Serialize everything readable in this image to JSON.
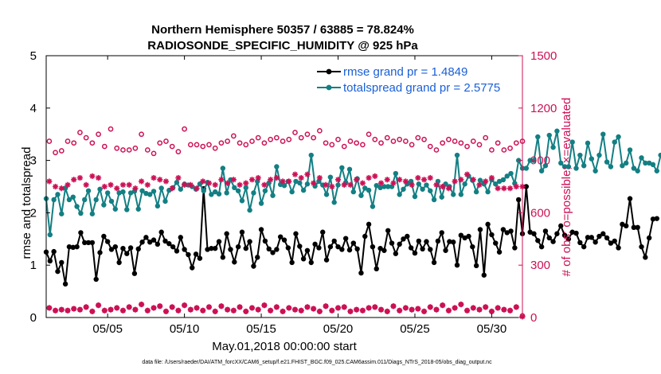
{
  "chart_data": {
    "type": "line",
    "title": "Northern Hemisphere 50357 / 63885 = 78.824%",
    "subtitle": "RADIOSONDE_SPECIFIC_HUMIDITY @ 925 hPa",
    "xlabel": "May.01,2018 00:00:00 start",
    "ylabel": "rmse and totalspread",
    "y2label": "# of obs: o=possible; ×=evaluated",
    "footnote": "data file: /Users/raeder/DAI/ATM_forcXX/CAM6_setup/f.e21.FHIST_BGC.f09_025.CAM6assim.011/Diags_NTrS_2018-05/obs_diag_output.nc",
    "xlim": [
      1,
      32
    ],
    "ylim": [
      0,
      5
    ],
    "y2lim": [
      0,
      1500
    ],
    "xticks": [
      5,
      10,
      15,
      20,
      25,
      30
    ],
    "xtick_labels": [
      "05/05",
      "05/10",
      "05/15",
      "05/20",
      "05/25",
      "05/30"
    ],
    "yticks": [
      "0",
      "1",
      "2",
      "3",
      "4",
      "5"
    ],
    "y2ticks": [
      "0",
      "300",
      "600",
      "900",
      "1200",
      "1500"
    ],
    "legend": [
      "rmse grand pr = 1.4849",
      "totalspread grand pr = 2.5775"
    ],
    "legend_position": "top-right",
    "x_step": 0.25,
    "series": [
      {
        "role": "rmse",
        "color": "#000000",
        "marker": "filled-circle",
        "axis": "left",
        "values": [
          1.25,
          1.08,
          1.26,
          0.88,
          1.05,
          0.64,
          1.35,
          1.34,
          1.35,
          1.62,
          1.43,
          1.43,
          1.43,
          0.73,
          1.24,
          1.55,
          1.45,
          1.3,
          1.35,
          1.05,
          1.32,
          1.22,
          1.33,
          0.84,
          1.31,
          1.44,
          1.53,
          1.44,
          1.48,
          1.4,
          1.63,
          1.46,
          1.41,
          1.35,
          1.27,
          1.53,
          1.3,
          1.2,
          0.95,
          1.21,
          1.13,
          2.46,
          1.3,
          1.32,
          1.32,
          1.45,
          1.15,
          1.6,
          1.3,
          1.06,
          1.35,
          1.63,
          1.32,
          1.45,
          0.98,
          1.15,
          1.68,
          1.46,
          1.31,
          1.24,
          1.3,
          1.54,
          1.48,
          1.33,
          1.05,
          1.6,
          1.36,
          1.12,
          1.28,
          1.05,
          1.4,
          1.33,
          1.63,
          1.1,
          1.35,
          1.46,
          1.35,
          1.3,
          1.51,
          1.29,
          1.42,
          1.31,
          0.85,
          1.55,
          1.78,
          1.35,
          0.93,
          1.32,
          1.28,
          1.66,
          1.42,
          1.22,
          1.4,
          1.5,
          1.55,
          1.33,
          1.23,
          1.46,
          1.31,
          1.45,
          1.3,
          1.05,
          1.46,
          1.62,
          1.28,
          1.45,
          1.44,
          1.0,
          1.57,
          1.52,
          1.55,
          1.35,
          0.99,
          1.68,
          0.81,
          1.78,
          1.58,
          1.42,
          1.25,
          1.68,
          1.62,
          1.65,
          1.33,
          2.25,
          1.6,
          2.5,
          1.63,
          1.6,
          1.47,
          1.35,
          1.65,
          1.52,
          1.45,
          1.6,
          1.75,
          1.57,
          1.5,
          1.63,
          1.61,
          1.43,
          1.35,
          1.53,
          1.53,
          1.44,
          1.55,
          1.6,
          1.52,
          1.42,
          1.46,
          1.33,
          1.78,
          1.75,
          2.27,
          1.72,
          1.72,
          1.35,
          1.15,
          1.52,
          1.88,
          1.89
        ]
      },
      {
        "role": "totalspread",
        "color": "#137f83",
        "marker": "filled-circle",
        "axis": "left",
        "values": [
          2.27,
          1.58,
          2.25,
          2.35,
          1.98,
          2.47,
          2.25,
          2.3,
          2.12,
          1.99,
          2.25,
          2.42,
          1.98,
          2.25,
          2.45,
          2.15,
          2.38,
          2.22,
          2.07,
          2.38,
          2.4,
          2.06,
          2.38,
          2.41,
          2.07,
          2.42,
          2.37,
          2.35,
          2.41,
          2.13,
          2.47,
          2.22,
          2.43,
          2.48,
          2.58,
          2.45,
          2.55,
          2.53,
          2.5,
          2.45,
          2.55,
          2.42,
          2.58,
          2.35,
          2.4,
          2.36,
          2.85,
          2.38,
          2.63,
          2.48,
          2.42,
          2.23,
          2.48,
          2.05,
          2.38,
          2.6,
          2.18,
          2.42,
          2.57,
          2.33,
          2.88,
          2.54,
          2.52,
          2.6,
          2.4,
          2.6,
          2.57,
          2.43,
          2.55,
          3.1,
          2.51,
          2.6,
          2.53,
          2.35,
          2.68,
          2.2,
          2.53,
          2.86,
          2.58,
          2.83,
          2.4,
          2.65,
          2.33,
          2.47,
          2.43,
          2.12,
          2.52,
          2.48,
          2.5,
          2.5,
          2.5,
          2.75,
          2.35,
          2.45,
          2.55,
          2.6,
          2.31,
          2.55,
          2.45,
          2.53,
          2.42,
          2.25,
          2.6,
          2.3,
          2.55,
          2.5,
          2.35,
          3.1,
          2.35,
          2.55,
          2.7,
          2.62,
          2.4,
          2.62,
          2.55,
          2.4,
          2.63,
          2.55,
          2.6,
          2.63,
          2.7,
          2.75,
          2.56,
          3.0,
          2.85,
          2.85,
          3.0,
          3.0,
          3.45,
          2.8,
          2.9,
          3.48,
          3.25,
          3.56,
          2.95,
          2.88,
          2.88,
          3.35,
          2.85,
          3.1,
          2.9,
          3.33,
          3.03,
          2.8,
          3.1,
          3.5,
          2.97,
          2.88,
          3.35,
          3.45,
          2.9,
          2.95,
          3.2,
          2.85,
          2.8,
          3.05,
          2.95,
          2.95,
          2.92,
          2.8,
          3.1,
          3.0,
          3.42,
          3.4
        ]
      },
      {
        "role": "possible",
        "color": "#cc1155",
        "marker": "open-circle",
        "axis": "right",
        "x": [
          1.2,
          1.6,
          2.0,
          2.4,
          2.8,
          3.2,
          3.6,
          4.0,
          4.4,
          4.8,
          5.2,
          5.6,
          6.0,
          6.4,
          6.8,
          7.2,
          7.6,
          8.0,
          8.4,
          8.8,
          9.2,
          9.6,
          10.0,
          10.4,
          10.8,
          11.2,
          11.6,
          12.0,
          12.4,
          12.8,
          13.2,
          13.6,
          14.0,
          14.4,
          14.8,
          15.2,
          15.6,
          16.0,
          16.4,
          16.8,
          17.2,
          17.6,
          18.0,
          18.4,
          18.8,
          19.2,
          19.6,
          20.0,
          20.4,
          20.8,
          21.2,
          21.6,
          22.0,
          22.4,
          22.8,
          23.2,
          23.6,
          24.0,
          24.4,
          24.8,
          25.2,
          25.6,
          26.0,
          26.4,
          26.8,
          27.2,
          27.6,
          28.0,
          28.4,
          28.8,
          29.2,
          29.6,
          30.0,
          30.4,
          30.8,
          31.2,
          31.6,
          32.0
        ],
        "values": [
          1010,
          945,
          955,
          1010,
          1000,
          1060,
          1030,
          1000,
          1050,
          980,
          1080,
          970,
          960,
          960,
          970,
          1050,
          960,
          940,
          1000,
          1010,
          980,
          950,
          1080,
          990,
          990,
          980,
          990,
          970,
          1000,
          1010,
          1040,
          1000,
          990,
          1010,
          1030,
          1000,
          1020,
          1030,
          1010,
          1020,
          1060,
          1030,
          1050,
          1030,
          1070,
          1000,
          990,
          1020,
          980,
          1010,
          1000,
          990,
          1050,
          1020,
          1000,
          1030,
          1010,
          1020,
          1010,
          990,
          1030,
          1020,
          980,
          960,
          1000,
          1020,
          1010,
          1000,
          980,
          1010,
          990,
          1030,
          960,
          1000,
          960,
          970,
          1000,
          1010
        ]
      },
      {
        "role": "evaluated",
        "color": "#cc1155",
        "marker": "asterisk",
        "axis": "right",
        "x": [
          1.2,
          1.6,
          2.0,
          2.4,
          2.8,
          3.2,
          3.6,
          4.0,
          4.4,
          4.8,
          5.2,
          5.6,
          6.0,
          6.4,
          6.8,
          7.2,
          7.6,
          8.0,
          8.4,
          8.8,
          9.2,
          9.6,
          10.0,
          10.4,
          10.8,
          11.2,
          11.6,
          12.0,
          12.4,
          12.8,
          13.2,
          13.6,
          14.0,
          14.4,
          14.8,
          15.2,
          15.6,
          16.0,
          16.4,
          16.8,
          17.2,
          17.6,
          18.0,
          18.4,
          18.8,
          19.2,
          19.6,
          20.0,
          20.4,
          20.8,
          21.2,
          21.6,
          22.0,
          22.4,
          22.8,
          23.2,
          23.6,
          24.0,
          24.4,
          24.8,
          25.2,
          25.6,
          26.0,
          26.4,
          26.8,
          27.2,
          27.6,
          28.0,
          28.4,
          28.8,
          29.2,
          29.6,
          30.0,
          30.4,
          30.8,
          31.2,
          31.6,
          32.0
        ],
        "values": [
          780,
          750,
          740,
          760,
          790,
          800,
          760,
          810,
          800,
          750,
          760,
          740,
          760,
          760,
          740,
          780,
          760,
          800,
          790,
          780,
          740,
          800,
          760,
          760,
          740,
          780,
          770,
          760,
          790,
          770,
          790,
          760,
          770,
          790,
          800,
          760,
          790,
          800,
          780,
          780,
          820,
          800,
          820,
          770,
          800,
          760,
          750,
          790,
          760,
          760,
          790,
          770,
          800,
          810,
          770,
          790,
          770,
          790,
          780,
          760,
          800,
          790,
          800,
          760,
          750,
          740,
          780,
          790,
          820,
          790,
          760,
          780,
          800,
          740,
          740,
          740,
          750,
          750
        ]
      },
      {
        "role": "possible-low",
        "color": "#cc1155",
        "marker": "open-circle",
        "axis": "right",
        "x": [
          1.2,
          1.6,
          2.0,
          2.4,
          2.8,
          3.2,
          3.6,
          4.0,
          4.4,
          4.8,
          5.2,
          5.6,
          6.0,
          6.4,
          6.8,
          7.2,
          7.6,
          8.0,
          8.4,
          8.8,
          9.2,
          9.6,
          10.0,
          10.4,
          10.8,
          11.2,
          11.6,
          12.0,
          12.4,
          12.8,
          13.2,
          13.6,
          14.0,
          14.4,
          14.8,
          15.2,
          15.6,
          16.0,
          16.4,
          16.8,
          17.2,
          17.6,
          18.0,
          18.4,
          18.8,
          19.2,
          19.6,
          20.0,
          20.4,
          20.8,
          21.2,
          21.6,
          22.0,
          22.4,
          22.8,
          23.2,
          23.6,
          24.0,
          24.4,
          24.8,
          25.2,
          25.6,
          26.0,
          26.4,
          26.8,
          27.2,
          27.6,
          28.0,
          28.4,
          28.8,
          29.2,
          29.6,
          30.0,
          30.4,
          30.8,
          31.2,
          31.6,
          32.0
        ],
        "values": [
          55,
          40,
          45,
          40,
          50,
          45,
          60,
          35,
          70,
          40,
          45,
          55,
          40,
          60,
          45,
          75,
          40,
          55,
          65,
          35,
          60,
          40,
          70,
          45,
          55,
          40,
          60,
          35,
          65,
          45,
          40,
          60,
          35,
          55,
          45,
          70,
          40,
          60,
          35,
          55,
          45,
          40,
          60,
          50,
          35,
          65,
          40,
          55,
          60,
          35,
          45,
          40,
          55,
          60,
          45,
          35,
          65,
          40,
          55,
          45,
          50,
          35,
          60,
          45,
          70,
          40,
          55,
          75,
          40,
          55,
          45,
          60,
          35,
          55,
          45,
          40,
          60,
          10
        ]
      },
      {
        "role": "evaluated-low",
        "color": "#cc1155",
        "marker": "asterisk",
        "axis": "right",
        "x": [
          1.2,
          1.6,
          2.0,
          2.4,
          2.8,
          3.2,
          3.6,
          4.0,
          4.4,
          4.8,
          5.2,
          5.6,
          6.0,
          6.4,
          6.8,
          7.2,
          7.6,
          8.0,
          8.4,
          8.8,
          9.2,
          9.6,
          10.0,
          10.4,
          10.8,
          11.2,
          11.6,
          12.0,
          12.4,
          12.8,
          13.2,
          13.6,
          14.0,
          14.4,
          14.8,
          15.2,
          15.6,
          16.0,
          16.4,
          16.8,
          17.2,
          17.6,
          18.0,
          18.4,
          18.8,
          19.2,
          19.6,
          20.0,
          20.4,
          20.8,
          21.2,
          21.6,
          22.0,
          22.4,
          22.8,
          23.2,
          23.6,
          24.0,
          24.4,
          24.8,
          25.2,
          25.6,
          26.0,
          26.4,
          26.8,
          27.2,
          27.6,
          28.0,
          28.4,
          28.8,
          29.2,
          29.6,
          30.0,
          30.4,
          30.8,
          31.2,
          31.6,
          32.0
        ],
        "values": [
          55,
          40,
          45,
          40,
          50,
          45,
          60,
          35,
          70,
          40,
          45,
          55,
          40,
          60,
          45,
          75,
          40,
          55,
          65,
          35,
          60,
          40,
          70,
          45,
          55,
          40,
          60,
          35,
          65,
          45,
          40,
          60,
          35,
          55,
          45,
          70,
          40,
          60,
          35,
          55,
          45,
          40,
          60,
          50,
          35,
          65,
          40,
          55,
          60,
          35,
          45,
          40,
          55,
          60,
          45,
          35,
          65,
          40,
          55,
          45,
          50,
          35,
          60,
          45,
          70,
          40,
          55,
          75,
          40,
          55,
          45,
          60,
          35,
          55,
          45,
          40,
          60,
          5
        ]
      }
    ]
  }
}
